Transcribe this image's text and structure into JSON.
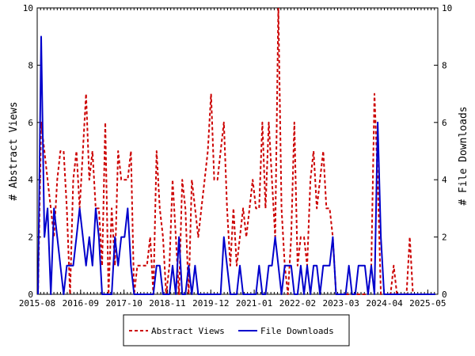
{
  "chart_data": {
    "type": "line",
    "title": "",
    "x_axis": {
      "ticks": [
        "2015-08",
        "2016-09",
        "2017-10",
        "2018-11",
        "2019-12",
        "2021-01",
        "2022-02",
        "2023-03",
        "2024-04",
        "2025-05"
      ],
      "range": [
        "2015-08",
        "2025-08"
      ]
    },
    "y_left": {
      "label": "# Abstract Views",
      "range": [
        0,
        10
      ],
      "ticks": [
        0,
        2,
        4,
        6,
        8,
        10
      ]
    },
    "y_right": {
      "label": "# File Downloads",
      "range": [
        0,
        10
      ],
      "ticks": [
        0,
        2,
        4,
        6,
        8,
        10
      ]
    },
    "legend": {
      "placement": "bottom-center"
    },
    "grid": false,
    "series": [
      {
        "name": "Abstract Views",
        "color": "#cc0000",
        "style": "dashed",
        "axis": "left",
        "values": [
          0,
          6,
          5,
          4,
          3,
          2,
          4,
          5,
          5,
          3,
          0,
          4,
          5,
          3,
          5,
          7,
          4,
          5,
          3,
          3,
          1,
          6,
          0,
          3,
          1,
          5,
          4,
          4,
          4,
          5,
          0,
          1,
          1,
          1,
          1,
          2,
          0,
          5,
          3,
          2,
          0,
          1,
          4,
          2,
          0,
          4,
          3,
          0,
          4,
          3,
          2,
          3,
          4,
          5,
          7,
          4,
          4,
          5,
          6,
          3,
          1,
          3,
          1,
          2,
          3,
          2,
          3,
          4,
          3,
          3,
          6,
          3,
          6,
          4,
          2,
          10,
          3,
          1,
          0,
          2,
          6,
          1,
          2,
          2,
          1,
          4,
          5,
          3,
          4,
          5,
          3,
          3,
          2,
          0,
          0,
          0,
          0,
          0,
          0,
          0,
          0,
          0,
          0,
          0,
          1,
          7,
          4,
          0,
          0,
          0,
          0,
          1,
          0,
          0,
          0,
          0,
          2,
          0,
          0,
          0,
          0,
          0,
          0,
          0,
          0
        ]
      },
      {
        "name": "File Downloads",
        "color": "#0000cc",
        "style": "solid",
        "axis": "left",
        "values": [
          0,
          9,
          2,
          3,
          0,
          3,
          2,
          1,
          0,
          1,
          1,
          1,
          2,
          3,
          2,
          1,
          2,
          1,
          3,
          2,
          0,
          0,
          0,
          0,
          2,
          1,
          2,
          2,
          3,
          1,
          0,
          0,
          0,
          0,
          0,
          0,
          0,
          1,
          1,
          0,
          0,
          0,
          1,
          0,
          2,
          0,
          0,
          1,
          0,
          1,
          0,
          0,
          0,
          0,
          0,
          0,
          0,
          0,
          2,
          1,
          0,
          0,
          0,
          1,
          0,
          0,
          0,
          0,
          0,
          1,
          0,
          0,
          1,
          1,
          2,
          1,
          0,
          1,
          1,
          1,
          0,
          0,
          1,
          0,
          1,
          0,
          1,
          1,
          0,
          1,
          1,
          1,
          2,
          0,
          0,
          0,
          0,
          1,
          0,
          0,
          1,
          1,
          1,
          0,
          1,
          0,
          6,
          2,
          0,
          0,
          0,
          0,
          0,
          0,
          0,
          0,
          0,
          0,
          0,
          0,
          0,
          0,
          0,
          0,
          0
        ]
      }
    ]
  },
  "colors": {
    "abstract": "#cc0000",
    "downloads": "#0000cc",
    "axes": "#000000"
  }
}
